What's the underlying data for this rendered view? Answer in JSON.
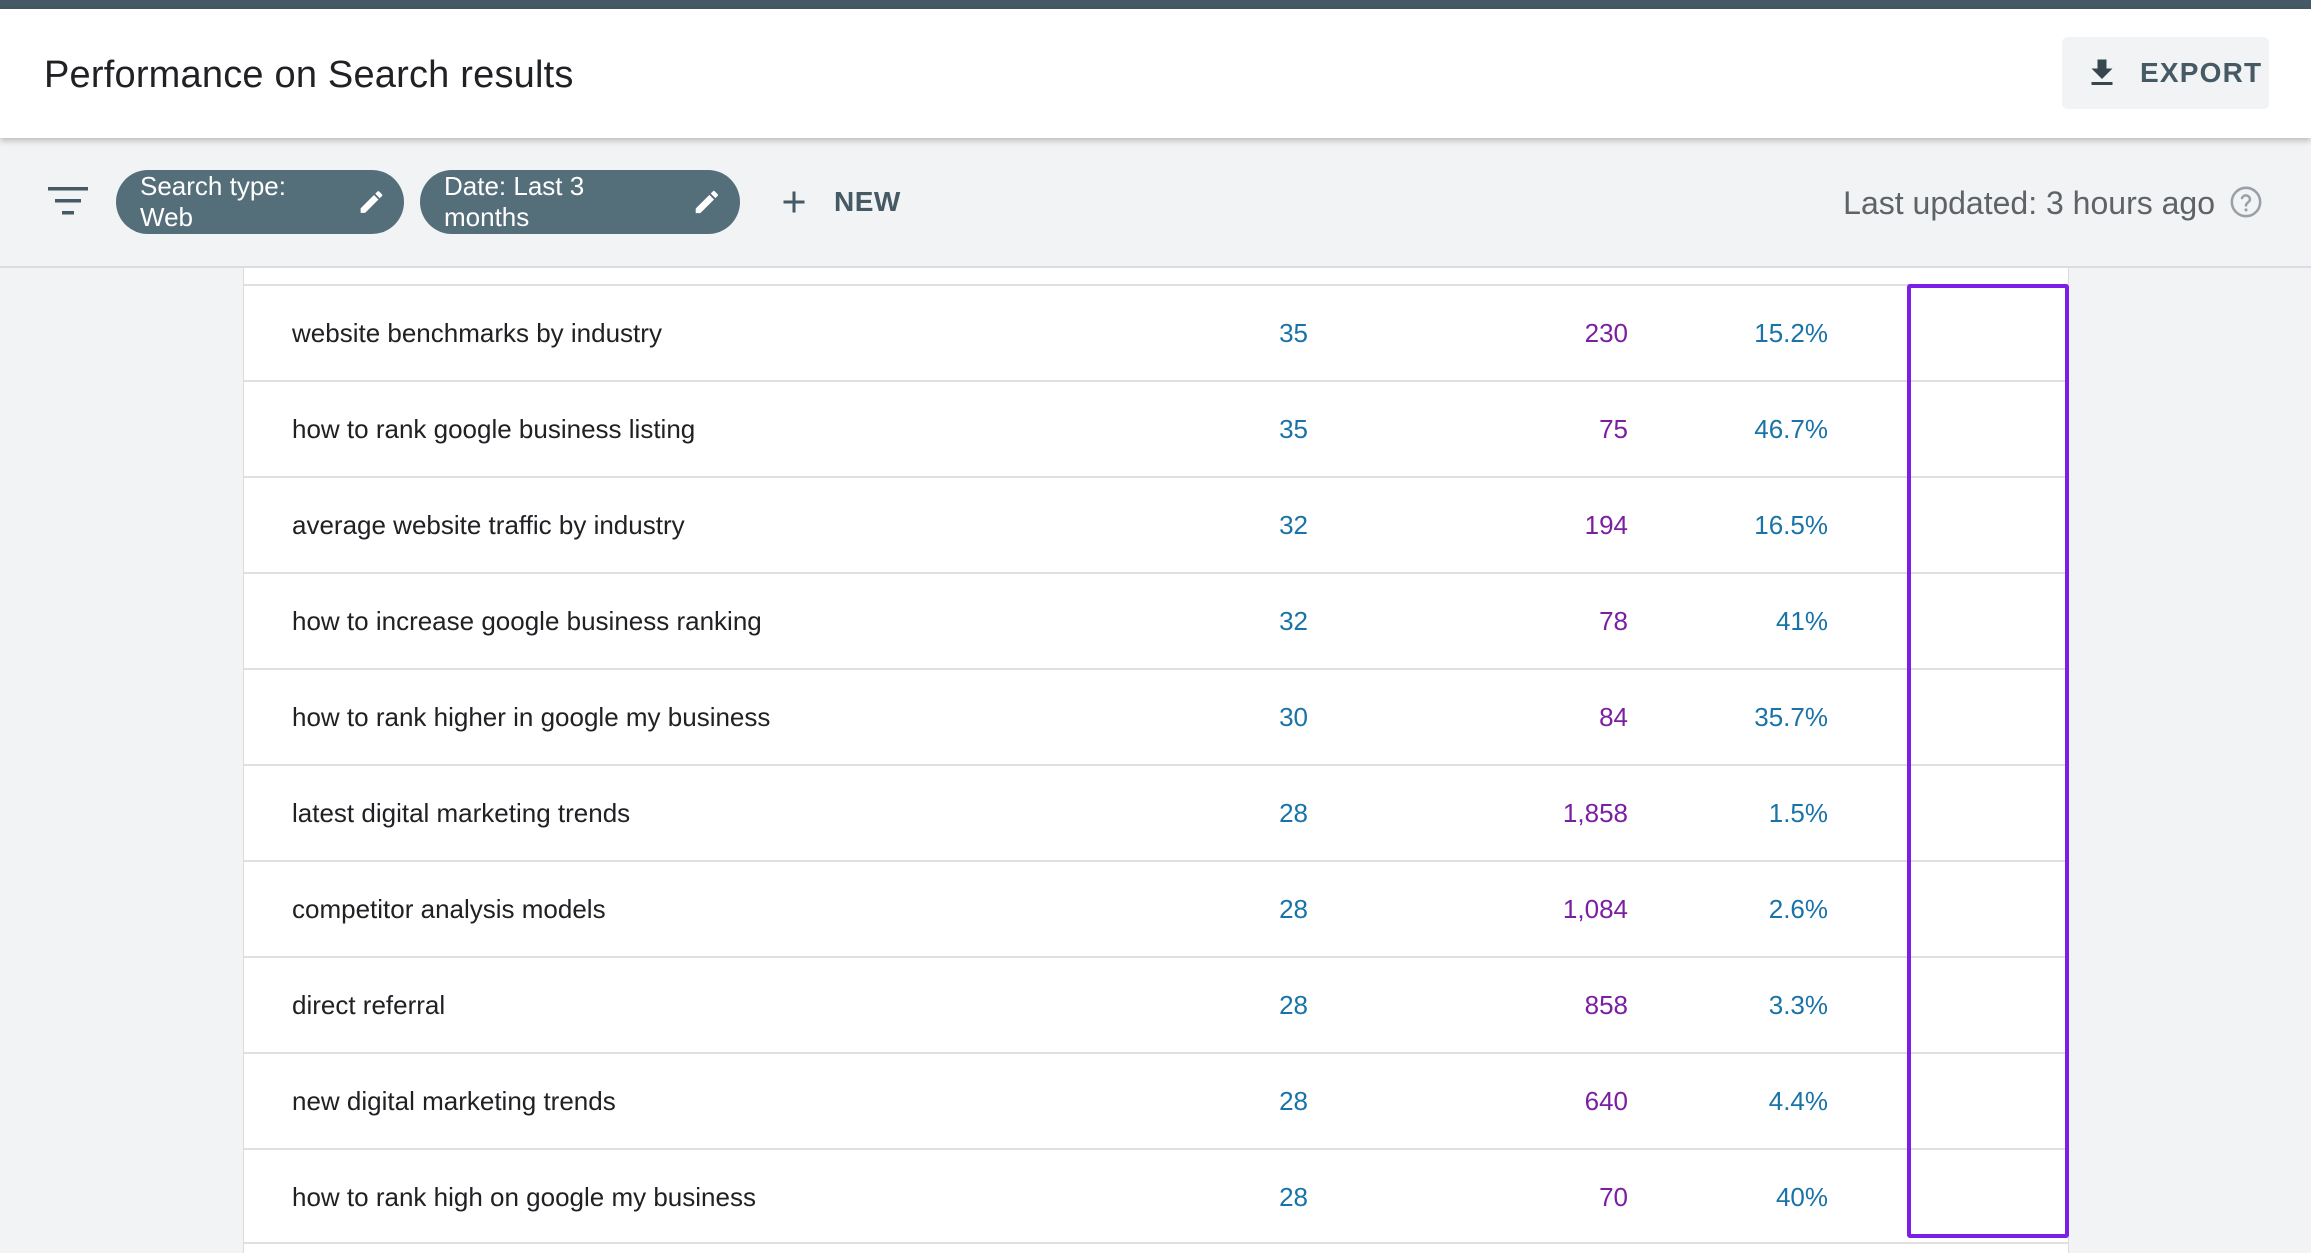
{
  "header": {
    "title": "Performance on Search results",
    "export_label": "EXPORT"
  },
  "filters": {
    "chips": [
      {
        "label": "Search type: Web"
      },
      {
        "label": "Date: Last 3 months"
      }
    ],
    "new_label": "NEW",
    "last_updated": "Last updated: 3 hours ago"
  },
  "colors": {
    "top_bar": "#455a64",
    "chip_bg": "#546e7a",
    "clicks_color": "#1a73a8",
    "impressions_color": "#7b1fa2",
    "ctr_color": "#1a73a8",
    "highlight_border": "#7c1fe6"
  },
  "icons": {
    "filter": "filter-lines-icon",
    "export": "download-icon",
    "edit": "pencil-icon",
    "new": "plus-icon",
    "help": "help-circle-icon"
  },
  "table": {
    "rows": [
      {
        "query": "website benchmarks by industry",
        "clicks": "35",
        "impressions": "230",
        "ctr": "15.2%"
      },
      {
        "query": "how to rank google business listing",
        "clicks": "35",
        "impressions": "75",
        "ctr": "46.7%"
      },
      {
        "query": "average website traffic by industry",
        "clicks": "32",
        "impressions": "194",
        "ctr": "16.5%"
      },
      {
        "query": "how to increase google business ranking",
        "clicks": "32",
        "impressions": "78",
        "ctr": "41%"
      },
      {
        "query": "how to rank higher in google my business",
        "clicks": "30",
        "impressions": "84",
        "ctr": "35.7%"
      },
      {
        "query": "latest digital marketing trends",
        "clicks": "28",
        "impressions": "1,858",
        "ctr": "1.5%"
      },
      {
        "query": "competitor analysis models",
        "clicks": "28",
        "impressions": "1,084",
        "ctr": "2.6%"
      },
      {
        "query": "direct referral",
        "clicks": "28",
        "impressions": "858",
        "ctr": "3.3%"
      },
      {
        "query": "new digital marketing trends",
        "clicks": "28",
        "impressions": "640",
        "ctr": "4.4%"
      },
      {
        "query": "how to rank high on google my business",
        "clicks": "28",
        "impressions": "70",
        "ctr": "40%"
      }
    ]
  }
}
